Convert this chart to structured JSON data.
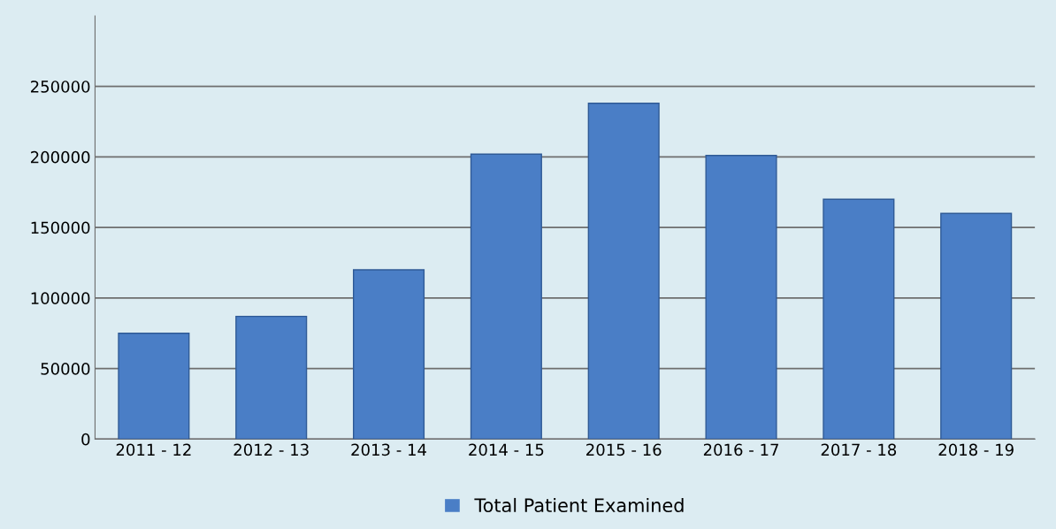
{
  "chart_data": {
    "type": "bar",
    "categories": [
      "2011 - 12",
      "2012 - 13",
      "2013 - 14",
      "2014 - 15",
      "2015 - 16",
      "2016 - 17",
      "2017 - 18",
      "2018 - 19"
    ],
    "series": [
      {
        "name": "Total Patient Examined",
        "color": "#4a7ec6",
        "values": [
          75000,
          87000,
          120000,
          202000,
          238000,
          201000,
          170000,
          160000
        ]
      }
    ],
    "ylim": [
      0,
      300000
    ],
    "yticks": [
      0,
      50000,
      100000,
      150000,
      200000,
      250000
    ],
    "grid": "y",
    "legend": "bottom"
  }
}
